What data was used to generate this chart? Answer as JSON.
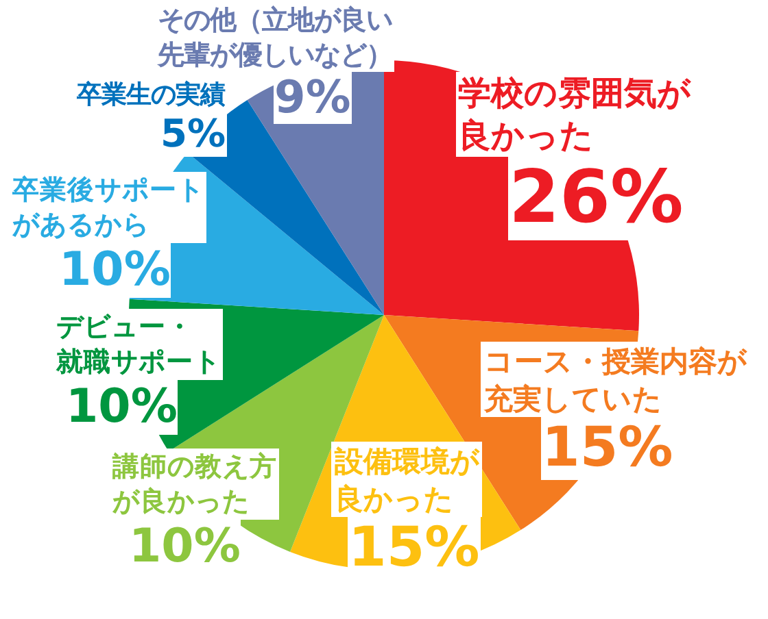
{
  "chart_data": {
    "type": "pie",
    "categories": [
      "学校の雰囲気が良かった",
      "コース・授業内容が充実していた",
      "設備環境が良かった",
      "講師の教え方が良かった",
      "デビュー・就職サポート",
      "卒業後サポートがあるから",
      "卒業生の実績",
      "その他（立地が良い先輩が優しいなど）"
    ],
    "values": [
      26,
      15,
      15,
      10,
      10,
      10,
      5,
      9
    ],
    "colors": [
      "#ed1c24",
      "#f47b20",
      "#fdc010",
      "#8dc63f",
      "#00963f",
      "#29abe2",
      "#0071bc",
      "#6a7bb0"
    ],
    "value_labels": [
      "26%",
      "15%",
      "15%",
      "10%",
      "10%",
      "10%",
      "5%",
      "9%"
    ]
  }
}
